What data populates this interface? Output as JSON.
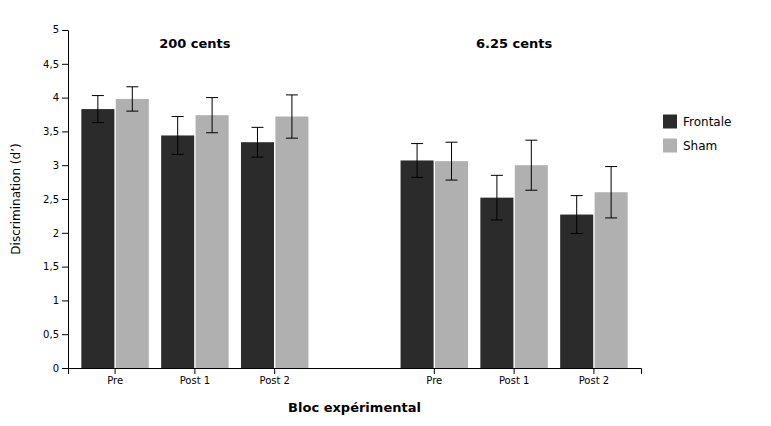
{
  "chart_data": {
    "type": "bar",
    "xlabel": "Bloc expérimental",
    "ylabel": "Discrimination (d’)",
    "groups": [
      "200 cents",
      "6.25 cents"
    ],
    "categories": [
      "Pre",
      "Post 1",
      "Post 2",
      "Pre",
      "Post 1",
      "Post 2"
    ],
    "series": [
      {
        "name": "Frontale",
        "color": "#2b2b2b",
        "values": [
          3.83,
          3.44,
          3.34,
          3.07,
          2.52,
          2.27
        ],
        "errors": [
          0.2,
          0.28,
          0.22,
          0.25,
          0.33,
          0.28
        ]
      },
      {
        "name": "Sham",
        "color": "#b0b0b0",
        "values": [
          3.98,
          3.74,
          3.72,
          3.06,
          3.0,
          2.6
        ],
        "errors": [
          0.18,
          0.26,
          0.32,
          0.28,
          0.37,
          0.38
        ]
      }
    ],
    "ylim": [
      0,
      5.0
    ],
    "yticks": [
      0,
      {
        "value": 0.5,
        "label": "0,5"
      },
      1,
      {
        "value": 1.5,
        "label": "1,5"
      },
      2,
      {
        "value": 2.5,
        "label": "2,5"
      },
      3,
      {
        "value": 3.5,
        "label": "3,5"
      },
      4,
      {
        "value": 4.5,
        "label": "4,5"
      }
    ],
    "annotations": [
      {
        "text": "5"
      }
    ],
    "grid": false,
    "legend": "right"
  }
}
